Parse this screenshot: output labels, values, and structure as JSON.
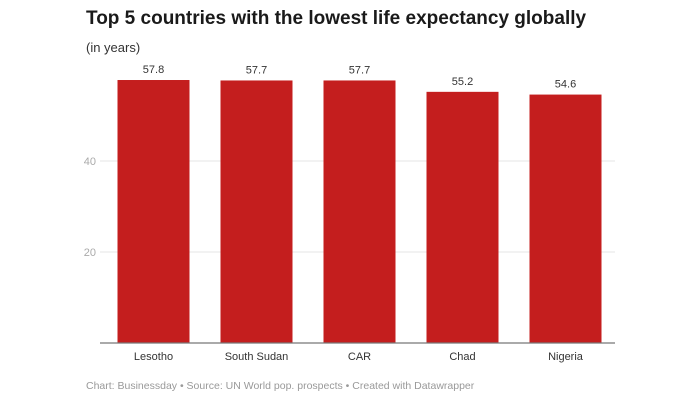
{
  "chart_data": {
    "type": "bar",
    "title": "Top 5 countries with the lowest life expectancy globally",
    "subtitle": "(in years)",
    "categories": [
      "Lesotho",
      "South Sudan",
      "CAR",
      "Chad",
      "Nigeria"
    ],
    "values": [
      57.8,
      57.7,
      57.7,
      55.2,
      54.6
    ],
    "data_labels": [
      "57.8",
      "57.7",
      "57.7",
      "55.2",
      "54.6"
    ],
    "yticks": [
      20,
      40
    ],
    "ylim": [
      0,
      60
    ],
    "grid": true,
    "bar_color": "#c41e1e",
    "footer": "Chart: Businessday • Source: UN World pop. prospects • Created with Datawrapper"
  }
}
